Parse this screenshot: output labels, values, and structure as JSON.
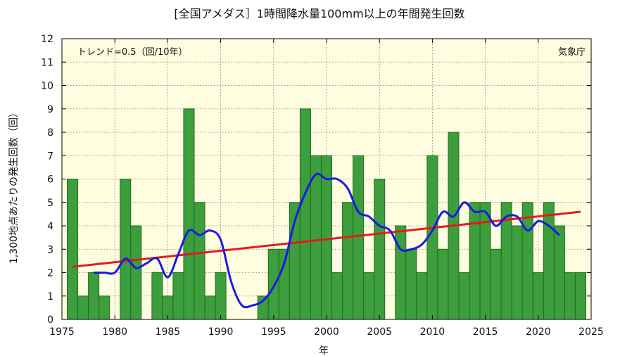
{
  "chart_data": {
    "type": "bar",
    "title": "[全国アメダス］1時間降水量100mm以上の年間発生回数",
    "xlabel": "年",
    "ylabel": "1,300地点あたりの発生回数（回）",
    "trend_text": "トレンド=0.5（回/10年）",
    "source_text": "気象庁",
    "xlim": [
      1975,
      2025
    ],
    "ylim": [
      0,
      12
    ],
    "x_ticks": [
      1975,
      1980,
      1985,
      1990,
      1995,
      2000,
      2005,
      2010,
      2015,
      2020,
      2025
    ],
    "y_ticks": [
      0,
      1,
      2,
      3,
      4,
      5,
      6,
      7,
      8,
      9,
      10,
      11,
      12
    ],
    "grid": true,
    "colors": {
      "background": "#fffde0",
      "bar_fill": "#3c9e3c",
      "bar_edge": "#1e6e1e",
      "moving_average": "#1a1ae6",
      "trend": "#e61a1a",
      "grid": "#777777"
    },
    "bars": {
      "years": [
        1976,
        1977,
        1978,
        1979,
        1980,
        1981,
        1982,
        1983,
        1984,
        1985,
        1986,
        1987,
        1988,
        1989,
        1990,
        1991,
        1992,
        1993,
        1994,
        1995,
        1996,
        1997,
        1998,
        1999,
        2000,
        2001,
        2002,
        2003,
        2004,
        2005,
        2006,
        2007,
        2008,
        2009,
        2010,
        2011,
        2012,
        2013,
        2014,
        2015,
        2016,
        2017,
        2018,
        2019,
        2020,
        2021,
        2022,
        2023,
        2024
      ],
      "values": [
        6,
        1,
        2,
        1,
        0,
        6,
        4,
        0,
        2,
        1,
        2,
        9,
        5,
        1,
        2,
        0,
        0,
        0,
        1,
        3,
        3,
        5,
        9,
        7,
        7,
        2,
        5,
        7,
        2,
        6,
        0,
        4,
        3,
        2,
        7,
        3,
        8,
        2,
        5,
        5,
        3,
        5,
        4,
        5,
        2,
        5,
        4,
        2,
        2
      ]
    },
    "moving_average": {
      "years": [
        1978,
        1979,
        1980,
        1981,
        1982,
        1983,
        1984,
        1985,
        1986,
        1987,
        1988,
        1989,
        1990,
        1991,
        1992,
        1993,
        1994,
        1995,
        1996,
        1997,
        1998,
        1999,
        2000,
        2001,
        2002,
        2003,
        2004,
        2005,
        2006,
        2007,
        2008,
        2009,
        2010,
        2011,
        2012,
        2013,
        2014,
        2015,
        2016,
        2017,
        2018,
        2019,
        2020,
        2021,
        2022
      ],
      "values": [
        2.0,
        2.0,
        2.0,
        2.6,
        2.2,
        2.4,
        2.6,
        1.8,
        2.8,
        3.8,
        3.6,
        3.8,
        3.4,
        1.6,
        0.6,
        0.6,
        0.8,
        1.4,
        2.4,
        4.2,
        5.4,
        6.2,
        6.0,
        6.0,
        5.6,
        4.6,
        4.4,
        4.0,
        3.8,
        3.0,
        3.0,
        3.2,
        3.8,
        4.6,
        4.4,
        5.0,
        4.6,
        4.6,
        4.0,
        4.4,
        4.4,
        3.8,
        4.2,
        4.0,
        3.6
      ]
    },
    "trend_line": {
      "x": [
        1976,
        2024
      ],
      "y": [
        2.25,
        4.6
      ]
    }
  }
}
